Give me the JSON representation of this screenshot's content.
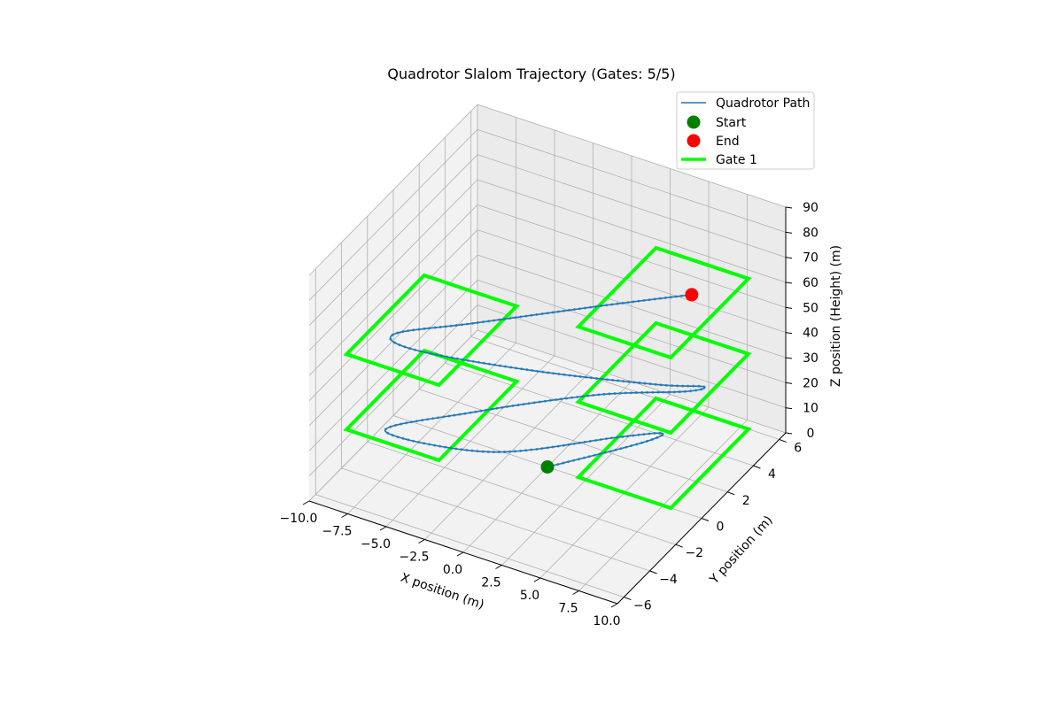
{
  "chart_data": {
    "type": "line",
    "projection": "3d",
    "title": "Quadrotor Slalom Trajectory (Gates: 5/5)",
    "xlabel": "X position (m)",
    "ylabel": "Y position (m)",
    "zlabel": "Z position (Height) (m)",
    "xlim": [
      -10,
      10
    ],
    "ylim": [
      -6.5,
      6.5
    ],
    "zlim": [
      0,
      90
    ],
    "x_ticks": [
      "−10.0",
      "−7.5",
      "−5.0",
      "−2.5",
      "0.0",
      "2.5",
      "5.0",
      "7.5",
      "10.0"
    ],
    "y_ticks": [
      "−6",
      "−4",
      "−2",
      "0",
      "2",
      "4",
      "6"
    ],
    "z_ticks": [
      "0",
      "10",
      "20",
      "30",
      "40",
      "50",
      "60",
      "70",
      "80",
      "90"
    ],
    "grid": true,
    "legend_position": "top-right",
    "legend": [
      {
        "label": "Quadrotor Path",
        "kind": "line",
        "color": "#1f77b4"
      },
      {
        "label": "Start",
        "kind": "marker",
        "color": "#008000"
      },
      {
        "label": "End",
        "kind": "marker",
        "color": "#ff0000"
      },
      {
        "label": "Gate 1",
        "kind": "line",
        "color": "#00ff00"
      }
    ],
    "series": [
      {
        "name": "Quadrotor Path",
        "color": "#1f77b4",
        "points": [
          [
            0,
            0,
            0
          ],
          [
            3.6,
            2.8,
            2
          ],
          [
            4.6,
            3.4,
            5
          ],
          [
            3.2,
            1.6,
            10
          ],
          [
            -1.5,
            -2.5,
            16
          ],
          [
            -7.0,
            -4.2,
            22
          ],
          [
            -3.3,
            -1.8,
            24.5
          ],
          [
            2.0,
            1.5,
            25
          ],
          [
            6.0,
            3.5,
            24
          ],
          [
            7.0,
            3.7,
            27
          ],
          [
            5.0,
            2.5,
            30
          ],
          [
            -0.5,
            -0.5,
            40
          ],
          [
            -6.0,
            -3.0,
            50
          ],
          [
            -7.0,
            -3.5,
            57
          ],
          [
            -3.5,
            -1.5,
            58
          ],
          [
            2.0,
            2.0,
            58
          ],
          [
            6.0,
            4.0,
            60
          ]
        ]
      }
    ],
    "start": {
      "label": "Start",
      "point": [
        0,
        0,
        0
      ],
      "color": "#008000"
    },
    "end": {
      "label": "End",
      "point": [
        6.0,
        4.0,
        60
      ],
      "color": "#ff0000"
    },
    "gates": [
      {
        "center": [
          5,
          3,
          0
        ],
        "size": 3,
        "color": "#00ff00"
      },
      {
        "center": [
          -5,
          -3,
          30
        ],
        "size": 3,
        "color": "#00ff00"
      },
      {
        "center": [
          5,
          3,
          30
        ],
        "size": 3,
        "color": "#00ff00"
      },
      {
        "center": [
          -5,
          -3,
          60
        ],
        "size": 3,
        "color": "#00ff00"
      },
      {
        "center": [
          5,
          3,
          60
        ],
        "size": 3,
        "color": "#00ff00"
      }
    ]
  }
}
